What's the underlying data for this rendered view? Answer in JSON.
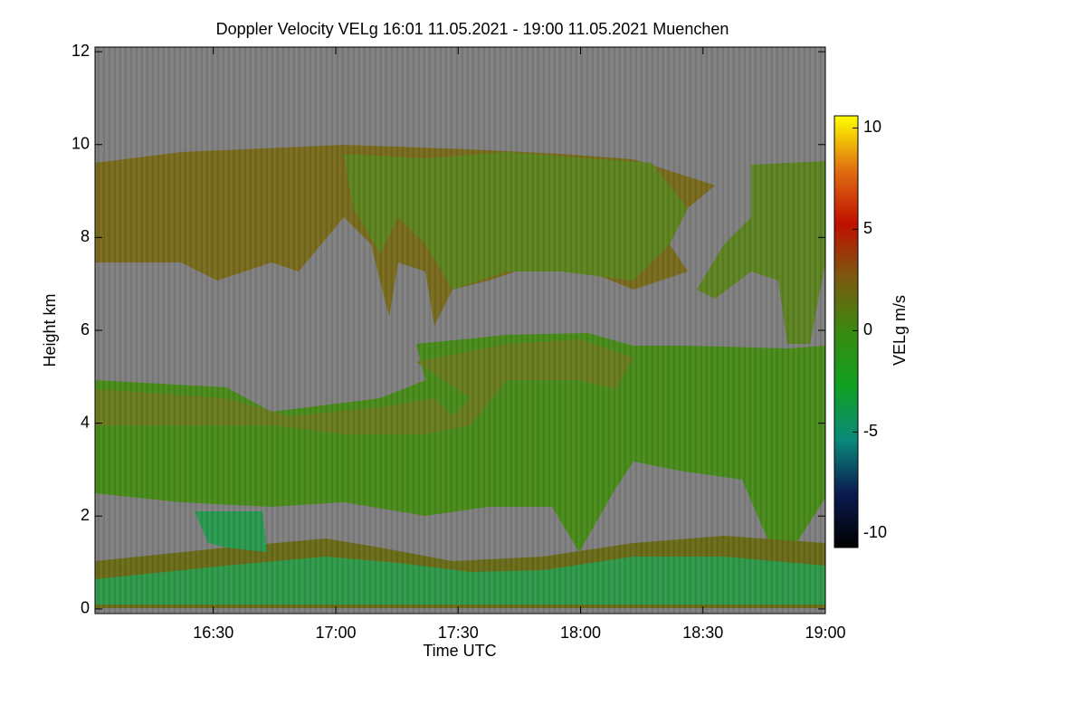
{
  "chart_data": {
    "type": "heatmap",
    "title": "Doppler Velocity VELg   16:01 11.05.2021 - 19:00 11.05.2021 Muenchen",
    "x_label": "Time UTC",
    "y_label": "Height km",
    "colorbar_label": "VELg m/s",
    "xlim": [
      961,
      1140
    ],
    "xticks": [
      {
        "value": 990,
        "label": "16:30"
      },
      {
        "value": 1020,
        "label": "17:00"
      },
      {
        "value": 1050,
        "label": "17:30"
      },
      {
        "value": 1080,
        "label": "18:00"
      },
      {
        "value": 1110,
        "label": "18:30"
      },
      {
        "value": 1140,
        "label": "19:00"
      }
    ],
    "ylim": [
      -0.1,
      12.1
    ],
    "yticks": [
      0,
      2,
      4,
      6,
      8,
      10,
      12
    ],
    "clim": [
      -10.7,
      10.6
    ],
    "cticks": [
      -10,
      -5,
      0,
      5,
      10
    ],
    "colormap": [
      "#000000",
      "#0a1a50",
      "#0a8a7a",
      "#10a020",
      "#3a8a10",
      "#7a5a10",
      "#c01000",
      "#e07010",
      "#ffff00"
    ],
    "background": "#808080"
  }
}
